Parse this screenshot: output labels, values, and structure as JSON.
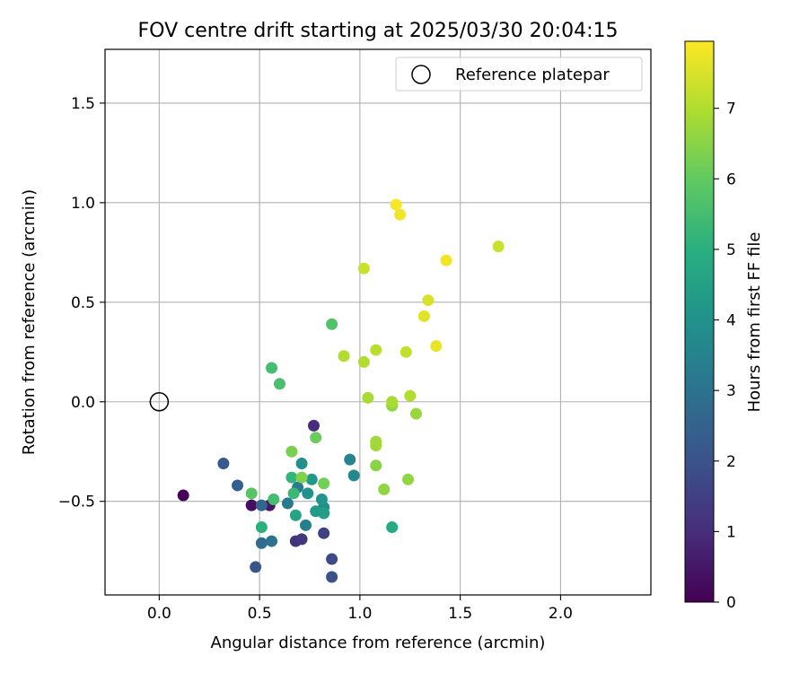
{
  "chart_data": {
    "type": "scatter",
    "title": "FOV centre drift starting at 2025/03/30 20:04:15",
    "xlabel": "Angular distance from reference (arcmin)",
    "ylabel": "Rotation from reference (arcmin)",
    "xlim": [
      -0.27,
      2.45
    ],
    "ylim": [
      -0.97,
      1.77
    ],
    "xticks": [
      0.0,
      0.5,
      1.0,
      1.5,
      2.0
    ],
    "xtick_labels": [
      "0.0",
      "0.5",
      "1.0",
      "1.5",
      "2.0"
    ],
    "yticks": [
      -0.5,
      0.0,
      0.5,
      1.0,
      1.5
    ],
    "ytick_labels": [
      "−0.5",
      "0.0",
      "0.5",
      "1.0",
      "1.5"
    ],
    "grid": true,
    "legend": {
      "location": "top-right",
      "entries": [
        {
          "label": "Reference platepar",
          "marker": "open-circle"
        }
      ]
    },
    "reference_point": {
      "x": 0.0,
      "y": 0.0,
      "label": "Reference platepar"
    },
    "colorbar": {
      "label": "Hours from first FF file",
      "colormap": "viridis",
      "range": [
        0,
        7.95
      ],
      "ticks": [
        0,
        1,
        2,
        3,
        4,
        5,
        6,
        7
      ],
      "tick_labels": [
        "0",
        "1",
        "2",
        "3",
        "4",
        "5",
        "6",
        "7"
      ]
    },
    "series": [
      {
        "points": [
          {
            "x": 0.12,
            "y": -0.47,
            "hours": 0.1
          },
          {
            "x": 0.46,
            "y": -0.52,
            "hours": 0.3
          },
          {
            "x": 0.55,
            "y": -0.52,
            "hours": 0.5
          },
          {
            "x": 0.77,
            "y": -0.12,
            "hours": 1.0
          },
          {
            "x": 0.68,
            "y": -0.7,
            "hours": 1.1
          },
          {
            "x": 0.71,
            "y": -0.69,
            "hours": 1.3
          },
          {
            "x": 0.82,
            "y": -0.66,
            "hours": 1.5
          },
          {
            "x": 0.86,
            "y": -0.79,
            "hours": 1.8
          },
          {
            "x": 0.86,
            "y": -0.88,
            "hours": 2.0
          },
          {
            "x": 0.48,
            "y": -0.83,
            "hours": 2.1
          },
          {
            "x": 0.32,
            "y": -0.31,
            "hours": 2.2
          },
          {
            "x": 0.39,
            "y": -0.42,
            "hours": 2.4
          },
          {
            "x": 0.51,
            "y": -0.52,
            "hours": 2.6
          },
          {
            "x": 0.51,
            "y": -0.71,
            "hours": 2.8
          },
          {
            "x": 0.56,
            "y": -0.7,
            "hours": 3.0
          },
          {
            "x": 0.64,
            "y": -0.51,
            "hours": 3.2
          },
          {
            "x": 0.69,
            "y": -0.43,
            "hours": 3.3
          },
          {
            "x": 0.73,
            "y": -0.62,
            "hours": 3.4
          },
          {
            "x": 0.95,
            "y": -0.29,
            "hours": 3.6
          },
          {
            "x": 0.97,
            "y": -0.37,
            "hours": 3.7
          },
          {
            "x": 0.82,
            "y": -0.53,
            "hours": 3.8
          },
          {
            "x": 0.71,
            "y": -0.31,
            "hours": 3.9
          },
          {
            "x": 0.74,
            "y": -0.46,
            "hours": 4.0
          },
          {
            "x": 0.81,
            "y": -0.49,
            "hours": 4.1
          },
          {
            "x": 0.76,
            "y": -0.39,
            "hours": 4.2
          },
          {
            "x": 0.78,
            "y": -0.55,
            "hours": 4.3
          },
          {
            "x": 0.82,
            "y": -0.56,
            "hours": 4.4
          },
          {
            "x": 0.68,
            "y": -0.57,
            "hours": 4.6
          },
          {
            "x": 1.16,
            "y": -0.63,
            "hours": 4.8
          },
          {
            "x": 0.51,
            "y": -0.63,
            "hours": 5.0
          },
          {
            "x": 0.66,
            "y": -0.38,
            "hours": 5.2
          },
          {
            "x": 0.67,
            "y": -0.46,
            "hours": 5.3
          },
          {
            "x": 0.57,
            "y": -0.49,
            "hours": 5.5
          },
          {
            "x": 0.56,
            "y": 0.17,
            "hours": 5.5
          },
          {
            "x": 0.6,
            "y": 0.09,
            "hours": 5.6
          },
          {
            "x": 0.86,
            "y": 0.39,
            "hours": 5.7
          },
          {
            "x": 0.46,
            "y": -0.46,
            "hours": 5.8
          },
          {
            "x": 0.78,
            "y": -0.18,
            "hours": 6.1
          },
          {
            "x": 0.82,
            "y": -0.41,
            "hours": 6.2
          },
          {
            "x": 0.66,
            "y": -0.25,
            "hours": 6.3
          },
          {
            "x": 0.71,
            "y": -0.38,
            "hours": 6.4
          },
          {
            "x": 1.08,
            "y": -0.32,
            "hours": 6.5
          },
          {
            "x": 1.12,
            "y": -0.44,
            "hours": 6.6
          },
          {
            "x": 1.24,
            "y": -0.39,
            "hours": 6.6
          },
          {
            "x": 1.16,
            "y": -0.02,
            "hours": 6.6
          },
          {
            "x": 1.28,
            "y": -0.06,
            "hours": 6.7
          },
          {
            "x": 1.08,
            "y": -0.2,
            "hours": 6.8
          },
          {
            "x": 1.08,
            "y": -0.22,
            "hours": 6.8
          },
          {
            "x": 1.16,
            "y": 0.0,
            "hours": 6.9
          },
          {
            "x": 1.04,
            "y": 0.02,
            "hours": 6.9
          },
          {
            "x": 1.25,
            "y": 0.03,
            "hours": 7.0
          },
          {
            "x": 0.92,
            "y": 0.23,
            "hours": 7.0
          },
          {
            "x": 1.02,
            "y": 0.2,
            "hours": 7.0
          },
          {
            "x": 1.08,
            "y": 0.26,
            "hours": 7.1
          },
          {
            "x": 1.23,
            "y": 0.25,
            "hours": 7.2
          },
          {
            "x": 1.02,
            "y": 0.67,
            "hours": 7.3
          },
          {
            "x": 1.34,
            "y": 0.51,
            "hours": 7.5
          },
          {
            "x": 1.32,
            "y": 0.43,
            "hours": 7.6
          },
          {
            "x": 1.38,
            "y": 0.28,
            "hours": 7.7
          },
          {
            "x": 1.43,
            "y": 0.71,
            "hours": 7.8
          },
          {
            "x": 1.69,
            "y": 0.78,
            "hours": 7.3
          },
          {
            "x": 1.18,
            "y": 0.99,
            "hours": 7.85
          },
          {
            "x": 1.2,
            "y": 0.94,
            "hours": 7.8
          }
        ]
      }
    ]
  }
}
